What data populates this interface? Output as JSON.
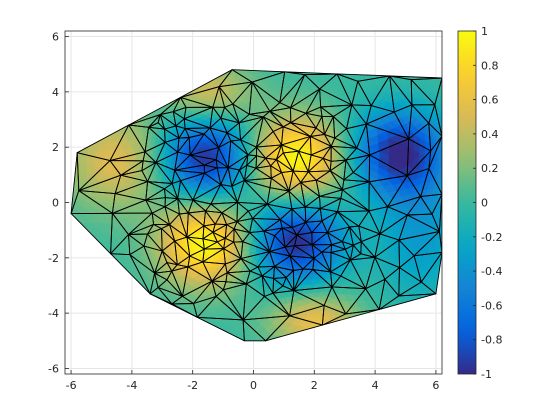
{
  "figure": {
    "background": "#ffffff"
  },
  "chart_data": {
    "type": "heatmap",
    "subtype": "triangulated-surface-view",
    "title": "",
    "xlabel": "",
    "ylabel": "",
    "xlim": [
      -6.2,
      6.2
    ],
    "ylim": [
      -6.2,
      6.2
    ],
    "xticks": [
      -6,
      -4,
      -2,
      0,
      2,
      4,
      6
    ],
    "xtick_labels": [
      "-6",
      "-4",
      "-2",
      "0",
      "2",
      "4",
      "6"
    ],
    "yticks": [
      -6,
      -4,
      -2,
      0,
      2,
      4,
      6
    ],
    "ytick_labels": [
      "-6",
      "-4",
      "-2",
      "0",
      "2",
      "4",
      "6"
    ],
    "grid": true,
    "colormap": "parula",
    "clim": [
      -1,
      1
    ],
    "colorbar": {
      "location": "right",
      "ticks": [
        -1,
        -0.8,
        -0.6,
        -0.4,
        -0.2,
        0,
        0.2,
        0.4,
        0.6,
        0.8,
        1
      ],
      "tick_labels": [
        "-1",
        "-0.8",
        "-0.6",
        "-0.4",
        "-0.2",
        "0",
        "0.2",
        "0.4",
        "0.6",
        "0.8",
        "1"
      ]
    },
    "surface_extrema": [
      {
        "x": 1.4,
        "y": 1.6,
        "value": 1.0
      },
      {
        "x": -1.6,
        "y": -1.5,
        "value": 1.0
      },
      {
        "x": -1.6,
        "y": 1.6,
        "value": -1.0
      },
      {
        "x": 1.4,
        "y": -1.4,
        "value": -1.0
      },
      {
        "x": 4.8,
        "y": 1.8,
        "value": -1.0
      }
    ],
    "hull_vertices": [
      [
        -6.0,
        -0.4
      ],
      [
        -5.8,
        1.8
      ],
      [
        -0.7,
        4.8
      ],
      [
        6.2,
        4.5
      ],
      [
        6.2,
        -1.8
      ],
      [
        6.0,
        -3.3
      ],
      [
        0.4,
        -5.0
      ],
      [
        -0.3,
        -5.0
      ],
      [
        -3.4,
        -3.3
      ]
    ],
    "mesh_edge_color": "#000000"
  }
}
